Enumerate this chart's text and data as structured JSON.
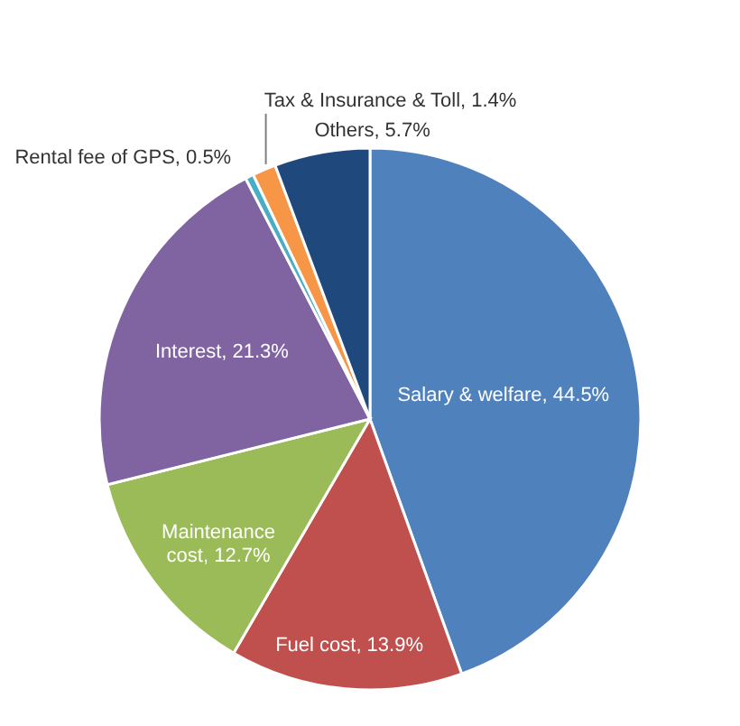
{
  "chart_data": {
    "type": "pie",
    "categories": [
      "Salary & welfare",
      "Fuel cost",
      "Maintenance cost",
      "Interest",
      "Rental fee of GPS",
      "Tax & Insurance & Toll",
      "Others"
    ],
    "values": [
      44.5,
      13.9,
      12.7,
      21.3,
      0.5,
      1.4,
      5.7
    ],
    "value_labels": [
      "44.5%",
      "13.9%",
      "12.7%",
      "21.3%",
      "0.5%",
      "1.4%",
      "5.7%"
    ],
    "colors": [
      "#4f81bd",
      "#c0504d",
      "#9bbb59",
      "#8064a2",
      "#4bacc6",
      "#f79646",
      "#1f497d"
    ],
    "legend": false
  }
}
